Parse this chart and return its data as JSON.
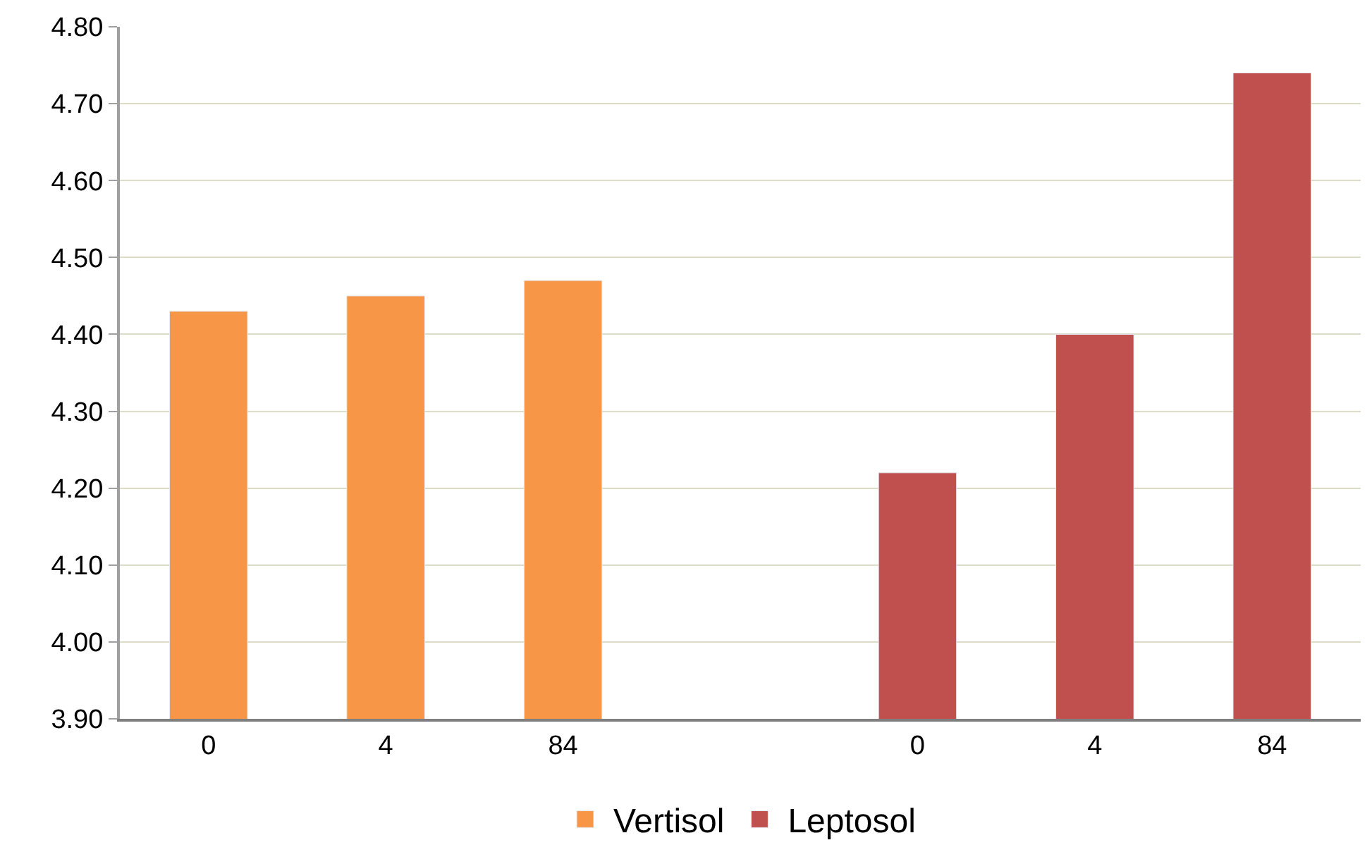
{
  "chart_data": {
    "type": "bar",
    "categories": [
      "0",
      "4",
      "84",
      null,
      "0",
      "4",
      "84"
    ],
    "series": [
      {
        "name": "Vertisol",
        "color": "#f79646",
        "values": [
          4.43,
          4.45,
          4.47,
          null,
          null,
          null,
          null
        ]
      },
      {
        "name": "Leptosol",
        "color": "#c0504d",
        "values": [
          null,
          null,
          null,
          null,
          4.22,
          4.4,
          4.74
        ]
      }
    ],
    "ylim": [
      3.9,
      4.8
    ],
    "yticks": [
      {
        "value": 3.9,
        "label": "3.90"
      },
      {
        "value": 4.0,
        "label": "4.00"
      },
      {
        "value": 4.1,
        "label": "4.10"
      },
      {
        "value": 4.2,
        "label": "4.20"
      },
      {
        "value": 4.3,
        "label": "4.30"
      },
      {
        "value": 4.4,
        "label": "4.40"
      },
      {
        "value": 4.5,
        "label": "4.50"
      },
      {
        "value": 4.6,
        "label": "4.60"
      },
      {
        "value": 4.7,
        "label": "4.70"
      },
      {
        "value": 4.8,
        "label": "4.80"
      }
    ],
    "grid": "y",
    "legend": "bottom"
  }
}
